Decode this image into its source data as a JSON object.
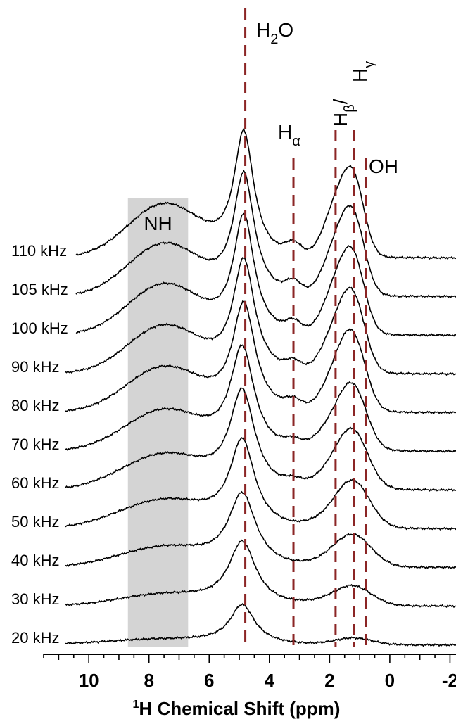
{
  "chart_data": {
    "type": "line",
    "xlabel": {
      "sup": "1",
      "main": "H Chemical Shift (ppm)"
    },
    "xlim": [
      11.5,
      -2.2
    ],
    "x_reversed": true,
    "xticks": [
      10,
      8,
      6,
      4,
      2,
      0,
      -2
    ],
    "xtick_labels": [
      "10",
      "8",
      "6",
      "4",
      "2",
      "0",
      "-2"
    ],
    "grid": false,
    "colors": {
      "trace": "#000000",
      "reference_line": "#8b2525",
      "shade": "#d4d4d4"
    },
    "shaded_region": {
      "label": "NH",
      "from": 8.7,
      "to": 6.7
    },
    "reference_lines": [
      {
        "id": "h2o",
        "x": 4.8,
        "label": "H",
        "sub": "2",
        "suffix": "O"
      },
      {
        "id": "ha",
        "x": 3.2,
        "label": "H",
        "sub": "α",
        "suffix": ""
      },
      {
        "id": "hbeta",
        "x": 1.8,
        "label": "H",
        "sub": "β",
        "suffix": "/"
      },
      {
        "id": "hgamma",
        "x": 1.2,
        "label": "H",
        "sub": "γ",
        "suffix": ""
      },
      {
        "id": "oh",
        "x": 0.8,
        "label": "OH",
        "sub": "",
        "suffix": ""
      }
    ],
    "series": [
      {
        "name": "20 kHz",
        "peaks": [
          [
            4.9,
            0.5,
            0.7
          ],
          [
            7.5,
            2.0,
            0.1
          ],
          [
            1.2,
            0.6,
            0.12
          ]
        ]
      },
      {
        "name": "30 kHz",
        "peaks": [
          [
            4.9,
            0.55,
            1.15
          ],
          [
            7.5,
            1.5,
            0.2
          ],
          [
            1.2,
            0.6,
            0.32
          ],
          [
            2.0,
            0.8,
            0.06
          ]
        ]
      },
      {
        "name": "40 kHz",
        "peaks": [
          [
            4.9,
            0.55,
            1.3
          ],
          [
            7.5,
            1.5,
            0.35
          ],
          [
            1.2,
            0.6,
            0.55
          ],
          [
            2.0,
            0.6,
            0.08
          ]
        ]
      },
      {
        "name": "50 kHz",
        "peaks": [
          [
            4.9,
            0.5,
            1.55
          ],
          [
            7.5,
            1.5,
            0.5
          ],
          [
            1.2,
            0.55,
            0.8
          ],
          [
            2.0,
            0.6,
            0.15
          ]
        ]
      },
      {
        "name": "60 kHz",
        "peaks": [
          [
            4.9,
            0.5,
            1.75
          ],
          [
            7.5,
            1.4,
            0.62
          ],
          [
            1.2,
            0.5,
            0.95
          ],
          [
            1.9,
            0.55,
            0.3
          ],
          [
            3.2,
            0.3,
            0.1
          ]
        ]
      },
      {
        "name": "70 kHz",
        "peaks": [
          [
            4.9,
            0.48,
            1.85
          ],
          [
            7.5,
            1.3,
            0.72
          ],
          [
            1.2,
            0.45,
            1.05
          ],
          [
            1.9,
            0.5,
            0.42
          ],
          [
            3.2,
            0.3,
            0.12
          ]
        ]
      },
      {
        "name": "80 kHz",
        "peaks": [
          [
            4.85,
            0.46,
            1.95
          ],
          [
            7.5,
            1.25,
            0.8
          ],
          [
            1.2,
            0.42,
            1.2
          ],
          [
            1.8,
            0.45,
            0.6
          ],
          [
            3.2,
            0.28,
            0.15
          ]
        ]
      },
      {
        "name": "90 kHz",
        "peaks": [
          [
            4.85,
            0.44,
            2.05
          ],
          [
            7.5,
            1.2,
            0.85
          ],
          [
            1.2,
            0.4,
            1.2
          ],
          [
            1.8,
            0.45,
            0.7
          ],
          [
            3.2,
            0.25,
            0.15
          ]
        ]
      },
      {
        "name": "100 kHz",
        "peaks": [
          [
            4.85,
            0.42,
            2.15
          ],
          [
            7.5,
            1.2,
            0.9
          ],
          [
            1.2,
            0.38,
            1.25
          ],
          [
            1.8,
            0.42,
            0.78
          ],
          [
            3.2,
            0.25,
            0.18
          ]
        ]
      },
      {
        "name": "105 kHz",
        "peaks": [
          [
            4.85,
            0.42,
            2.2
          ],
          [
            7.5,
            1.2,
            0.93
          ],
          [
            1.2,
            0.38,
            1.28
          ],
          [
            1.8,
            0.42,
            0.8
          ],
          [
            3.2,
            0.25,
            0.2
          ]
        ]
      },
      {
        "name": "110 kHz",
        "peaks": [
          [
            4.85,
            0.4,
            2.25
          ],
          [
            7.5,
            1.2,
            0.95
          ],
          [
            1.2,
            0.36,
            1.3
          ],
          [
            1.8,
            0.4,
            0.85
          ],
          [
            3.2,
            0.25,
            0.2
          ]
        ]
      }
    ]
  }
}
